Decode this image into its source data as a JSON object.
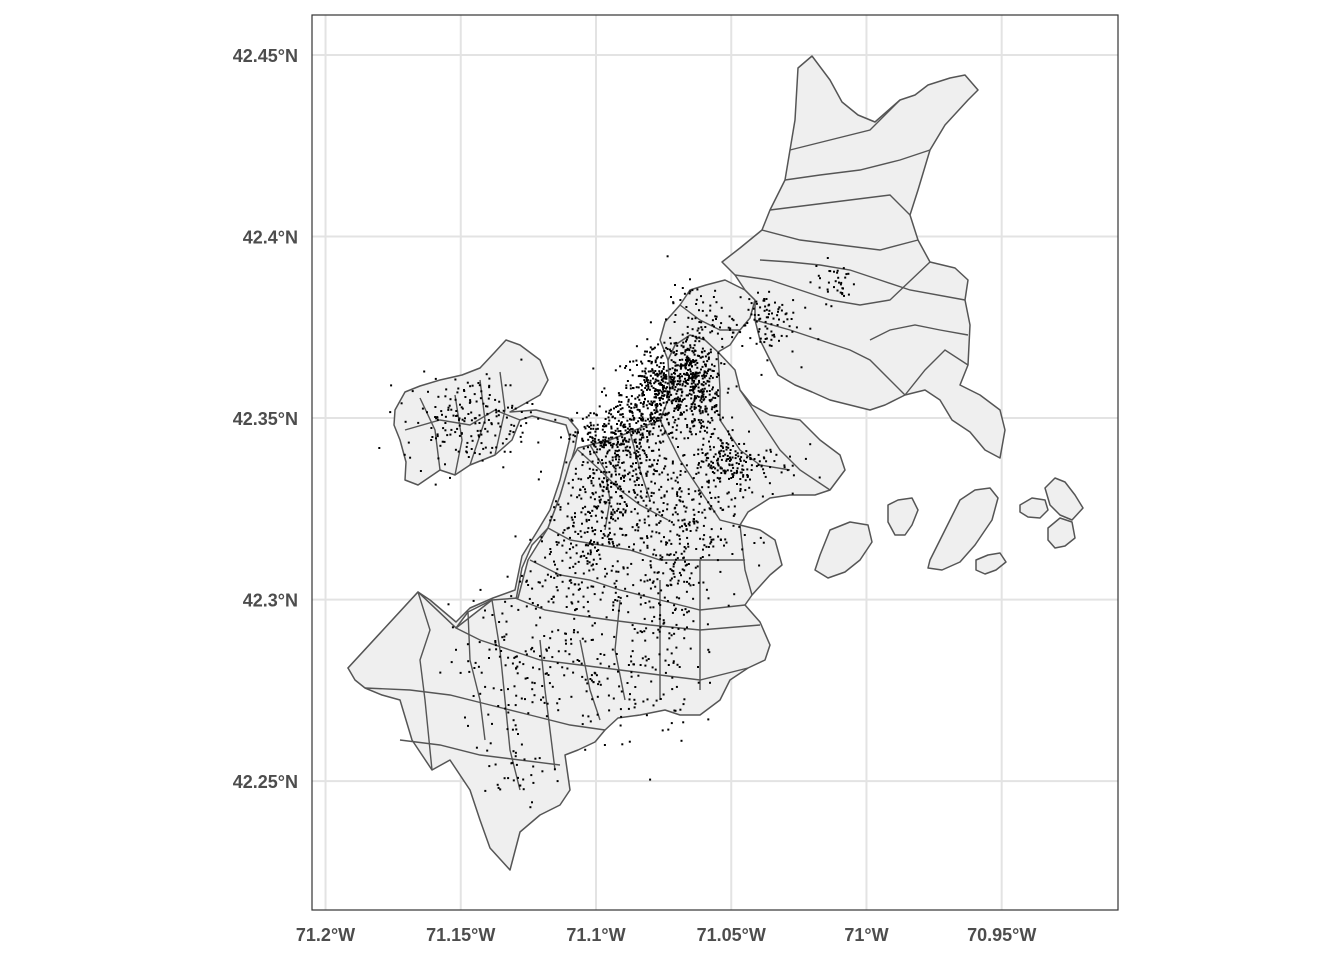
{
  "map": {
    "x_ticks": [
      {
        "label": "71.2°W",
        "lon": -71.2
      },
      {
        "label": "71.15°W",
        "lon": -71.15
      },
      {
        "label": "71.1°W",
        "lon": -71.1
      },
      {
        "label": "71.05°W",
        "lon": -71.05
      },
      {
        "label": "71°W",
        "lon": -71.0
      },
      {
        "label": "70.95°W",
        "lon": -70.95
      }
    ],
    "y_ticks": [
      {
        "label": "42.45°N",
        "lat": 42.45
      },
      {
        "label": "42.4°N",
        "lat": 42.4
      },
      {
        "label": "42.35°N",
        "lat": 42.35
      },
      {
        "label": "42.3°N",
        "lat": 42.3
      },
      {
        "label": "42.25°N",
        "lat": 42.25
      }
    ],
    "lon_range": [
      -71.205,
      -70.907
    ],
    "lat_range": [
      42.2145,
      42.461
    ],
    "grid": true,
    "colors": {
      "polygon_fill": "#efefef",
      "polygon_stroke": "#555555",
      "points": "#000000",
      "grid": "#e3e3e3",
      "panel_border": "#333333"
    },
    "point_clusters": [
      {
        "lon": -71.077,
        "lat": 42.357,
        "sd_lon": 0.007,
        "sd_lat": 0.006,
        "n": 420
      },
      {
        "lon": -71.061,
        "lat": 42.355,
        "sd_lon": 0.004,
        "sd_lat": 0.005,
        "n": 180
      },
      {
        "lon": -71.066,
        "lat": 42.365,
        "sd_lon": 0.005,
        "sd_lat": 0.004,
        "n": 160
      },
      {
        "lon": -71.099,
        "lat": 42.344,
        "sd_lon": 0.005,
        "sd_lat": 0.004,
        "n": 130
      },
      {
        "lon": -71.087,
        "lat": 42.344,
        "sd_lon": 0.007,
        "sd_lat": 0.006,
        "n": 200
      },
      {
        "lon": -71.092,
        "lat": 42.327,
        "sd_lon": 0.009,
        "sd_lat": 0.008,
        "n": 220
      },
      {
        "lon": -71.068,
        "lat": 42.32,
        "sd_lon": 0.01,
        "sd_lat": 0.01,
        "n": 240
      },
      {
        "lon": -71.106,
        "lat": 42.319,
        "sd_lon": 0.006,
        "sd_lat": 0.009,
        "n": 130
      },
      {
        "lon": -71.052,
        "lat": 42.338,
        "sd_lon": 0.006,
        "sd_lat": 0.004,
        "n": 110
      },
      {
        "lon": -71.045,
        "lat": 42.338,
        "sd_lon": 0.01,
        "sd_lat": 0.005,
        "n": 90
      },
      {
        "lon": -71.147,
        "lat": 42.35,
        "sd_lon": 0.012,
        "sd_lat": 0.006,
        "n": 180
      },
      {
        "lon": -71.062,
        "lat": 42.377,
        "sd_lon": 0.006,
        "sd_lat": 0.005,
        "n": 80
      },
      {
        "lon": -71.038,
        "lat": 42.377,
        "sd_lon": 0.006,
        "sd_lat": 0.005,
        "n": 90
      },
      {
        "lon": -71.012,
        "lat": 42.388,
        "sd_lon": 0.004,
        "sd_lat": 0.003,
        "n": 35
      },
      {
        "lon": -71.078,
        "lat": 42.3,
        "sd_lon": 0.008,
        "sd_lat": 0.008,
        "n": 100
      },
      {
        "lon": -71.125,
        "lat": 42.285,
        "sd_lon": 0.015,
        "sd_lat": 0.01,
        "n": 140
      },
      {
        "lon": -71.088,
        "lat": 42.278,
        "sd_lon": 0.012,
        "sd_lat": 0.009,
        "n": 110
      },
      {
        "lon": -71.13,
        "lat": 42.255,
        "sd_lon": 0.006,
        "sd_lat": 0.008,
        "n": 40
      },
      {
        "lon": -71.11,
        "lat": 42.3,
        "sd_lon": 0.01,
        "sd_lat": 0.008,
        "n": 80
      }
    ]
  }
}
